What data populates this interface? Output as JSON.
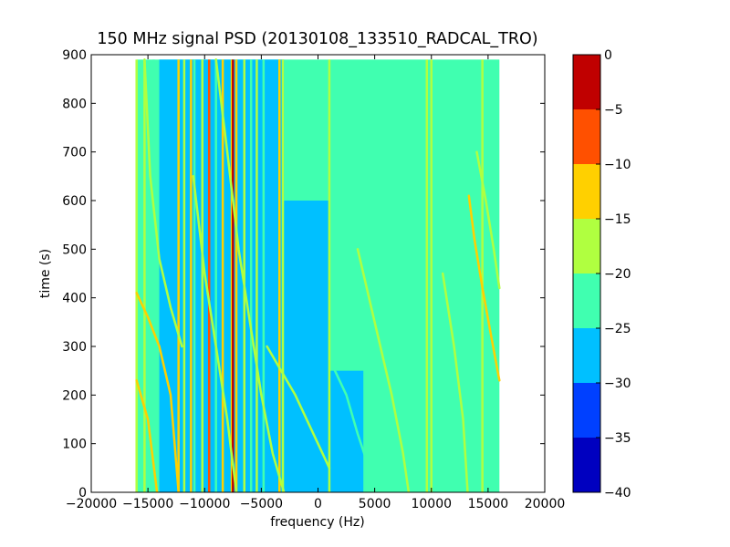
{
  "chart_data": {
    "type": "heatmap",
    "title": "150 MHz signal PSD (20130108_133510_RADCAL_TRO)",
    "xlabel": "frequency (Hz)",
    "ylabel": "time (s)",
    "xlim": [
      -20000,
      20000
    ],
    "ylim": [
      0,
      900
    ],
    "x_ticks": [
      -20000,
      -15000,
      -10000,
      -5000,
      0,
      5000,
      10000,
      15000,
      20000
    ],
    "x_tick_labels": [
      "−20000",
      "−15000",
      "−10000",
      "−5000",
      "0",
      "5000",
      "10000",
      "15000",
      "20000"
    ],
    "y_ticks": [
      0,
      100,
      200,
      300,
      400,
      500,
      600,
      700,
      800,
      900
    ],
    "y_tick_labels": [
      "0",
      "100",
      "200",
      "300",
      "400",
      "500",
      "600",
      "700",
      "800",
      "900"
    ],
    "data_extent": {
      "x": [
        -16000,
        16000
      ],
      "y": [
        0,
        890
      ]
    },
    "colorbar": {
      "range": [
        -40,
        0
      ],
      "ticks": [
        0,
        -5,
        -10,
        -15,
        -20,
        -25,
        -30,
        -35,
        -40
      ],
      "tick_labels": [
        "0",
        "−5",
        "−10",
        "−15",
        "−20",
        "−25",
        "−30",
        "−35",
        "−40"
      ],
      "levels": [
        {
          "from": -40,
          "to": -35,
          "color": "#0000c0"
        },
        {
          "from": -35,
          "to": -30,
          "color": "#0040ff"
        },
        {
          "from": -30,
          "to": -25,
          "color": "#00c0ff"
        },
        {
          "from": -25,
          "to": -20,
          "color": "#40ffb0"
        },
        {
          "from": -20,
          "to": -15,
          "color": "#b0ff40"
        },
        {
          "from": -15,
          "to": -10,
          "color": "#ffd000"
        },
        {
          "from": -10,
          "to": -5,
          "color": "#ff5000"
        },
        {
          "from": -5,
          "to": 0,
          "color": "#c00000"
        }
      ]
    },
    "regions": [
      {
        "x": [
          -16000,
          16000
        ],
        "y": [
          0,
          890
        ],
        "level": -22.5
      },
      {
        "x": [
          -14000,
          -3000
        ],
        "y": [
          0,
          890
        ],
        "level": -27.5
      },
      {
        "x": [
          -3000,
          1000
        ],
        "y": [
          0,
          600
        ],
        "level": -27.5
      },
      {
        "x": [
          1000,
          4000
        ],
        "y": [
          0,
          250
        ],
        "level": -27.5
      }
    ],
    "vertical_lines": [
      {
        "x": -16000,
        "level": -17.5
      },
      {
        "x": -15300,
        "level": -17.5
      },
      {
        "x": -14500,
        "level": -22.5
      },
      {
        "x": -12300,
        "level": -12.5
      },
      {
        "x": -11800,
        "level": -17.5
      },
      {
        "x": -11200,
        "level": -12.5
      },
      {
        "x": -10900,
        "level": -22.5
      },
      {
        "x": -10200,
        "level": -17.5
      },
      {
        "x": -9600,
        "level": -7.5
      },
      {
        "x": -9000,
        "level": -22.5
      },
      {
        "x": -8400,
        "level": -12.5
      },
      {
        "x": -7600,
        "level": -12.5
      },
      {
        "x": -7500,
        "level": -2.5
      },
      {
        "x": -7200,
        "level": -12.5
      },
      {
        "x": -6500,
        "level": -17.5
      },
      {
        "x": -5900,
        "level": -22.5
      },
      {
        "x": -5400,
        "level": -17.5
      },
      {
        "x": -4800,
        "level": -22.5
      },
      {
        "x": -3400,
        "level": -12.5
      },
      {
        "x": -3100,
        "level": -17.5
      },
      {
        "x": 1000,
        "level": -17.5
      },
      {
        "x": 9600,
        "level": -17.5
      },
      {
        "x": 10000,
        "level": -17.5
      },
      {
        "x": 14500,
        "level": -17.5
      }
    ],
    "tracks": [
      {
        "level": -12.5,
        "points": [
          [
            -16000,
            410
          ],
          [
            -15000,
            360
          ],
          [
            -14000,
            300
          ],
          [
            -13000,
            200
          ],
          [
            -12300,
            0
          ]
        ]
      },
      {
        "level": -12.5,
        "points": [
          [
            -16000,
            230
          ],
          [
            -15000,
            150
          ],
          [
            -14200,
            0
          ]
        ]
      },
      {
        "level": -17.5,
        "points": [
          [
            -15300,
            890
          ],
          [
            -14800,
            650
          ],
          [
            -14000,
            480
          ],
          [
            -13000,
            380
          ],
          [
            -12000,
            300
          ]
        ]
      },
      {
        "level": -17.5,
        "points": [
          [
            -11000,
            650
          ],
          [
            -10000,
            450
          ],
          [
            -9000,
            300
          ],
          [
            -8000,
            150
          ],
          [
            -7200,
            0
          ]
        ]
      },
      {
        "level": -17.5,
        "points": [
          [
            -9000,
            890
          ],
          [
            -8000,
            700
          ],
          [
            -7000,
            500
          ],
          [
            -6000,
            350
          ],
          [
            -5000,
            200
          ],
          [
            -4000,
            80
          ],
          [
            -3000,
            0
          ]
        ]
      },
      {
        "level": -17.5,
        "points": [
          [
            -4500,
            300
          ],
          [
            -2000,
            200
          ],
          [
            0,
            100
          ],
          [
            1000,
            50
          ]
        ]
      },
      {
        "level": -17.5,
        "points": [
          [
            3500,
            500
          ],
          [
            5000,
            350
          ],
          [
            6500,
            200
          ],
          [
            7500,
            80
          ],
          [
            8000,
            0
          ]
        ]
      },
      {
        "level": -22.5,
        "points": [
          [
            1500,
            250
          ],
          [
            2500,
            200
          ],
          [
            3500,
            120
          ],
          [
            4500,
            50
          ]
        ]
      },
      {
        "level": -17.5,
        "points": [
          [
            11000,
            450
          ],
          [
            12000,
            300
          ],
          [
            12800,
            150
          ],
          [
            13200,
            0
          ]
        ]
      },
      {
        "level": -12.5,
        "points": [
          [
            13300,
            610
          ],
          [
            13800,
            520
          ],
          [
            14500,
            420
          ],
          [
            15200,
            330
          ],
          [
            16000,
            230
          ]
        ]
      },
      {
        "level": -17.5,
        "points": [
          [
            14000,
            700
          ],
          [
            14800,
            600
          ],
          [
            15500,
            500
          ],
          [
            16000,
            420
          ]
        ]
      }
    ]
  }
}
